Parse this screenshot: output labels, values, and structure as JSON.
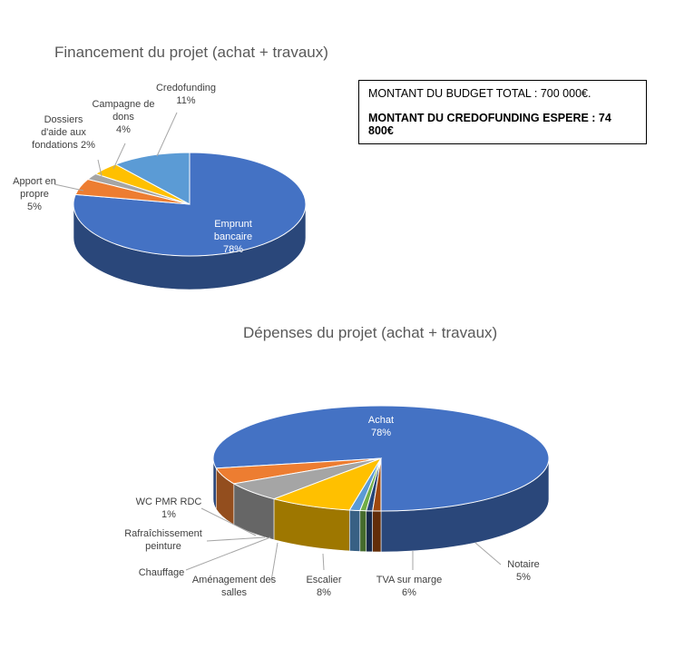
{
  "info_box": {
    "budget_total": "MONTANT DU BUDGET TOTAL : 700 000€.",
    "credofunding_expected": "MONTANT DU CREDOFUNDING ESPERE : 74 800€"
  },
  "chart_data": [
    {
      "type": "pie",
      "style": "3d",
      "title": "Financement du projet (achat + travaux)",
      "slices": [
        {
          "label_lines": [
            "Emprunt",
            "bancaire",
            "78%"
          ],
          "value": 78,
          "color": "#4472C4"
        },
        {
          "label_lines": [
            "Apport en",
            "propre",
            "5%"
          ],
          "value": 5,
          "color": "#ED7D31"
        },
        {
          "label_lines": [
            "Dossiers",
            "d'aide aux",
            "fondations 2%"
          ],
          "value": 2,
          "color": "#A5A5A5"
        },
        {
          "label_lines": [
            "Campagne de",
            "dons",
            "4%"
          ],
          "value": 4,
          "color": "#FFC000"
        },
        {
          "label_lines": [
            "Credofunding",
            "11%"
          ],
          "value": 11,
          "color": "#5B9BD5"
        }
      ]
    },
    {
      "type": "pie",
      "style": "3d",
      "title": "Dépenses du projet (achat + travaux)",
      "slices": [
        {
          "label_lines": [
            "Achat",
            "78%"
          ],
          "value": 78,
          "color": "#4472C4"
        },
        {
          "label_lines": [
            "Notaire",
            "5%"
          ],
          "value": 5,
          "color": "#ED7D31"
        },
        {
          "label_lines": [
            "TVA sur marge",
            "6%"
          ],
          "value": 6,
          "color": "#A5A5A5"
        },
        {
          "label_lines": [
            "Escalier",
            "8%"
          ],
          "value": 8,
          "color": "#FFC000"
        },
        {
          "label_lines": [
            "Aménagement des",
            "salles"
          ],
          "value": 1,
          "color": "#5B9BD5"
        },
        {
          "label_lines": [
            "Chauffage"
          ],
          "value": 0.6,
          "color": "#70AD47"
        },
        {
          "label_lines": [
            "Rafraîchissement",
            "peinture"
          ],
          "value": 0.6,
          "color": "#264478"
        },
        {
          "label_lines": [
            "WC PMR RDC",
            "1%"
          ],
          "value": 0.8,
          "color": "#9E480E"
        }
      ]
    }
  ]
}
